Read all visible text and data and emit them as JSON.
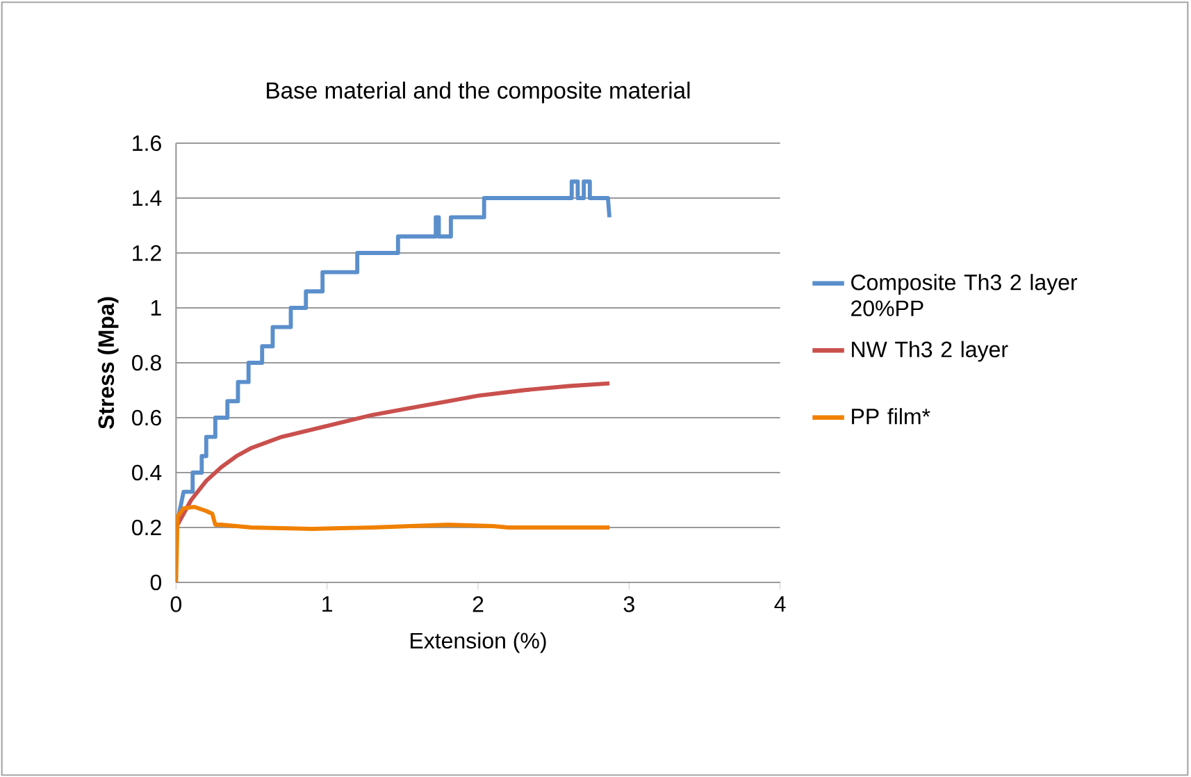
{
  "chart_data": {
    "type": "line",
    "title": "Base material and the composite material",
    "xlabel": "Extension (%)",
    "ylabel": "Stress (Mpa)",
    "xlim": [
      0,
      4
    ],
    "xticks": [
      0,
      1,
      2,
      3,
      4
    ],
    "ylim": [
      0,
      1.6
    ],
    "yticks": [
      0,
      0.2,
      0.4,
      0.6,
      0.8,
      1,
      1.2,
      1.4,
      1.6
    ],
    "grid": "y",
    "legend": "right",
    "marker": "none",
    "line_style": "solid",
    "series": [
      {
        "name": "Composite Th3 2 layer 20%PP",
        "color": "#5b8fcc",
        "x": [
          0.02,
          0.05,
          0.11,
          0.11,
          0.17,
          0.17,
          0.2,
          0.2,
          0.26,
          0.26,
          0.34,
          0.34,
          0.41,
          0.41,
          0.48,
          0.48,
          0.57,
          0.57,
          0.64,
          0.64,
          0.76,
          0.76,
          0.86,
          0.86,
          0.97,
          0.97,
          1.2,
          1.2,
          1.47,
          1.47,
          1.72,
          1.72,
          1.74,
          1.74,
          1.82,
          1.82,
          2.04,
          2.04,
          2.62,
          2.62,
          2.66,
          2.66,
          2.7,
          2.7,
          2.74,
          2.74,
          2.86,
          2.87
        ],
        "values": [
          0.25,
          0.33,
          0.33,
          0.4,
          0.4,
          0.46,
          0.46,
          0.53,
          0.53,
          0.6,
          0.6,
          0.66,
          0.66,
          0.73,
          0.73,
          0.8,
          0.8,
          0.86,
          0.86,
          0.93,
          0.93,
          1.0,
          1.0,
          1.06,
          1.06,
          1.13,
          1.13,
          1.2,
          1.2,
          1.26,
          1.26,
          1.33,
          1.33,
          1.26,
          1.26,
          1.33,
          1.33,
          1.4,
          1.4,
          1.46,
          1.46,
          1.4,
          1.4,
          1.46,
          1.46,
          1.4,
          1.4,
          1.33
        ]
      },
      {
        "name": "NW Th3 2 layer",
        "color": "#c9504d",
        "x": [
          0,
          0.05,
          0.1,
          0.2,
          0.3,
          0.4,
          0.5,
          0.7,
          1.0,
          1.3,
          1.5,
          1.8,
          2.0,
          2.3,
          2.6,
          2.87
        ],
        "values": [
          0.2,
          0.25,
          0.3,
          0.37,
          0.42,
          0.46,
          0.49,
          0.53,
          0.57,
          0.61,
          0.63,
          0.66,
          0.68,
          0.7,
          0.715,
          0.725
        ]
      },
      {
        "name": "PP film*",
        "color": "#f08000",
        "x": [
          0,
          0.01,
          0.05,
          0.12,
          0.2,
          0.24,
          0.26,
          0.3,
          0.5,
          0.9,
          1.3,
          1.8,
          2.1,
          2.2,
          2.87
        ],
        "values": [
          0,
          0.24,
          0.27,
          0.275,
          0.26,
          0.25,
          0.21,
          0.21,
          0.2,
          0.195,
          0.2,
          0.21,
          0.205,
          0.2,
          0.2
        ]
      }
    ]
  }
}
